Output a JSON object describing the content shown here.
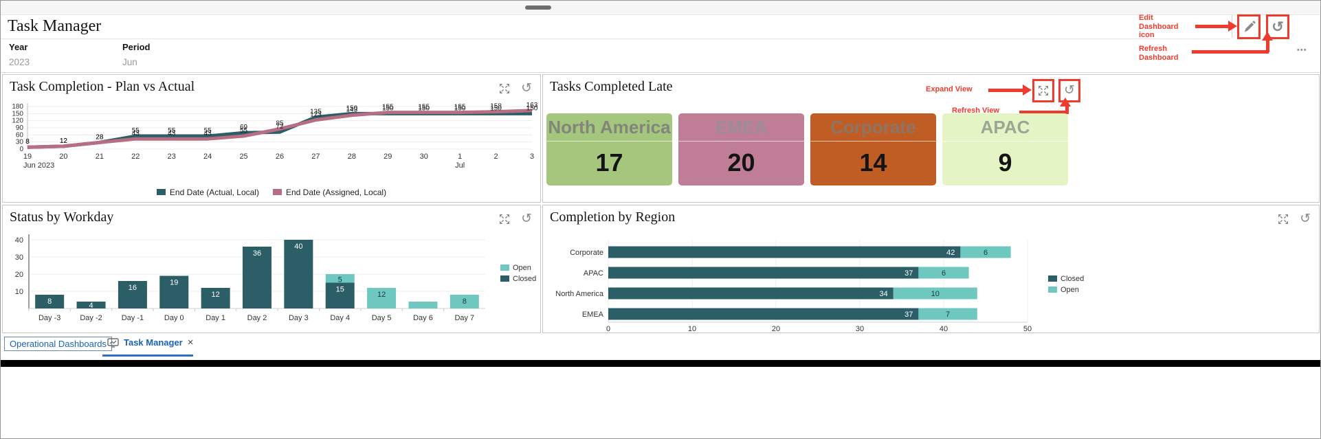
{
  "header": {
    "title": "Task Manager",
    "ellipsis": "•••"
  },
  "filters": {
    "year_label": "Year",
    "year_value": "2023",
    "period_label": "Period",
    "period_value": "Jun"
  },
  "annotations": {
    "edit_dashboard": "Edit Dashboard icon",
    "refresh_dashboard": "Refresh Dashboard",
    "expand_view": "Expand View",
    "refresh_view": "Refresh View",
    "color": "#ef3b2d"
  },
  "tabs": {
    "dashboards_link": "Operational Dashboards",
    "active_tab": "Task Manager",
    "close_label": "×"
  },
  "chart_data": [
    {
      "id": "task_completion",
      "type": "line",
      "title": "Task Completion - Plan vs Actual",
      "x_labels": [
        "19",
        "20",
        "21",
        "22",
        "23",
        "24",
        "25",
        "26",
        "27",
        "28",
        "29",
        "30",
        "1",
        "2",
        "3"
      ],
      "x_sub_labels": {
        "0": "Jun 2023",
        "12": "Jul"
      },
      "ylim": [
        0,
        180
      ],
      "yticks": [
        0,
        30,
        60,
        90,
        120,
        150,
        180
      ],
      "grid": true,
      "legend_position": "bottom",
      "series": [
        {
          "name": "End Date (Actual, Local)",
          "color": "#2b5e67",
          "values": [
            8,
            12,
            28,
            55,
            55,
            55,
            69,
            72,
            135,
            150,
            150,
            150,
            150,
            150,
            150
          ]
        },
        {
          "name": "End Date (Assigned, Local)",
          "color": "#b76e82",
          "values": [
            8,
            12,
            28,
            43,
            43,
            43,
            55,
            85,
            123,
            143,
            155,
            155,
            155,
            158,
            163
          ]
        }
      ]
    },
    {
      "id": "tasks_completed_late",
      "type": "scorecard",
      "title": "Tasks Completed Late",
      "tiles": [
        {
          "label": "North America",
          "value": "17",
          "bg": "#a5c77d",
          "label_color": "#82857b"
        },
        {
          "label": "EMEA",
          "value": "20",
          "bg": "#bf7e96",
          "label_color": "#9b8d94"
        },
        {
          "label": "Corporate",
          "value": "14",
          "bg": "#c05d24",
          "label_color": "#8d7566"
        },
        {
          "label": "APAC",
          "value": "9",
          "bg": "#e4f4c5",
          "label_color": "#9ba694"
        }
      ]
    },
    {
      "id": "status_by_workday",
      "type": "bar",
      "stacked": true,
      "title": "Status by Workday",
      "categories": [
        "Day -3",
        "Day -2",
        "Day -1",
        "Day 0",
        "Day 1",
        "Day 2",
        "Day 3",
        "Day 4",
        "Day 5",
        "Day 6",
        "Day 7"
      ],
      "yticks": [
        10,
        20,
        30,
        40
      ],
      "ylim": [
        0,
        42
      ],
      "grid": true,
      "legend_position": "right",
      "legend_order": [
        "Open",
        "Closed"
      ],
      "unlabeled_categories": [
        "Day 6"
      ],
      "series": [
        {
          "name": "Closed",
          "color": "#2b5e67",
          "values": [
            8,
            4,
            16,
            19,
            12,
            36,
            40,
            15,
            0,
            0,
            0
          ]
        },
        {
          "name": "Open",
          "color": "#6ec8bf",
          "values": [
            0,
            0,
            0,
            0,
            0,
            0,
            0,
            5,
            12,
            4,
            8
          ]
        }
      ]
    },
    {
      "id": "completion_by_region",
      "type": "bar-horizontal",
      "stacked": true,
      "title": "Completion by Region",
      "categories": [
        "Corporate",
        "APAC",
        "North America",
        "EMEA"
      ],
      "xticks": [
        0,
        10,
        20,
        30,
        40,
        50
      ],
      "xlim": [
        0,
        50
      ],
      "grid": true,
      "legend_position": "right",
      "legend_order": [
        "Closed",
        "Open"
      ],
      "series": [
        {
          "name": "Closed",
          "color": "#2b5e67",
          "values": [
            42,
            37,
            34,
            37
          ]
        },
        {
          "name": "Open",
          "color": "#6ec8bf",
          "values": [
            6,
            6,
            10,
            7
          ]
        }
      ]
    }
  ]
}
